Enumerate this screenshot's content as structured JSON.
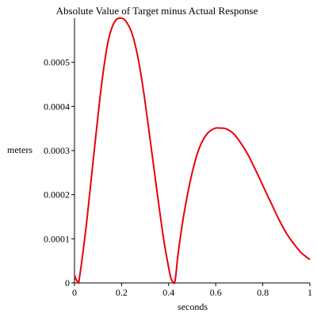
{
  "chart_data": {
    "type": "line",
    "title": "Absolute Value of Target minus Actual Response",
    "xlabel": "seconds",
    "ylabel": "meters",
    "xlim": [
      0,
      1
    ],
    "ylim": [
      0,
      0.0006
    ],
    "grid": false,
    "x_ticks": [
      0,
      0.2,
      0.4,
      0.6,
      0.8,
      1
    ],
    "x_tick_labels": [
      "0",
      "0.2",
      "0.4",
      "0.6",
      "0.8",
      "1"
    ],
    "y_ticks": [
      0,
      0.0001,
      0.0002,
      0.0003,
      0.0004,
      0.0005
    ],
    "y_tick_labels": [
      "0",
      "0.0001",
      "0.0002",
      "0.0003",
      "0.0004",
      "0.0005"
    ],
    "line_color": "#e8000b",
    "series": [
      {
        "x": [
          0,
          0.005,
          0.01,
          0.015,
          0.018,
          0.02,
          0.03,
          0.05,
          0.07,
          0.1,
          0.12,
          0.14,
          0.16,
          0.18,
          0.2,
          0.21,
          0.22,
          0.24,
          0.26,
          0.28,
          0.3,
          0.32,
          0.34,
          0.36,
          0.38,
          0.4,
          0.41,
          0.42,
          0.425,
          0.43,
          0.44,
          0.46,
          0.48,
          0.5,
          0.52,
          0.54,
          0.56,
          0.58,
          0.6,
          0.62,
          0.64,
          0.66,
          0.68,
          0.7,
          0.72,
          0.74,
          0.76,
          0.78,
          0.8,
          0.82,
          0.84,
          0.86,
          0.88,
          0.9,
          0.92,
          0.94,
          0.96,
          0.98,
          1.0
        ],
        "y": [
          1.8e-05,
          1e-05,
          5e-06,
          1e-06,
          0,
          8e-06,
          4.5e-05,
          0.00013,
          0.00023,
          0.00038,
          0.00047,
          0.00054,
          0.00058,
          0.000598,
          0.0006,
          0.000598,
          0.000592,
          0.000572,
          0.000535,
          0.00048,
          0.00041,
          0.00033,
          0.00025,
          0.00017,
          9.5e-05,
          3.5e-05,
          1e-05,
          1e-06,
          0,
          1.5e-05,
          6.5e-05,
          0.00014,
          0.0002,
          0.00025,
          0.00029,
          0.000318,
          0.000336,
          0.000346,
          0.000351,
          0.000351,
          0.00035,
          0.000345,
          0.000336,
          0.000322,
          0.000306,
          0.000288,
          0.000266,
          0.000244,
          0.000221,
          0.000198,
          0.000176,
          0.000153,
          0.000132,
          0.000113,
          9.7e-05,
          8.3e-05,
          7e-05,
          6.1e-05,
          5.3e-05
        ]
      }
    ]
  }
}
